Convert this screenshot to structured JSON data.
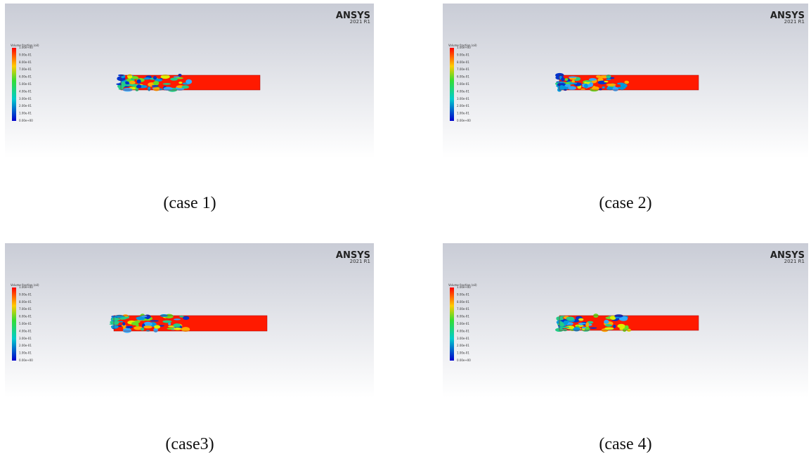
{
  "panels": [
    {
      "caption": "(case 1)",
      "logo": "ANSYS",
      "version": "2021 R1",
      "legend_title": "Volume fraction (oil)",
      "legend_labels": [
        "1.00e+00",
        "9.00e-01",
        "8.00e-01",
        "7.00e-01",
        "6.00e-01",
        "5.00e-01",
        "4.00e-01",
        "3.00e-01",
        "2.00e-01",
        "1.00e-01",
        "0.00e+00"
      ]
    },
    {
      "caption": "(case 2)",
      "logo": "ANSYS",
      "version": "2021 R1",
      "legend_title": "Volume fraction (oil)",
      "legend_labels": [
        "1.00e+00",
        "9.00e-01",
        "8.00e-01",
        "7.00e-01",
        "6.00e-01",
        "5.00e-01",
        "4.00e-01",
        "3.00e-01",
        "2.00e-01",
        "1.00e-01",
        "0.00e+00"
      ]
    },
    {
      "caption": "(case3)",
      "logo": "ANSYS",
      "version": "2021 R1",
      "legend_title": "Volume fraction (oil)",
      "legend_labels": [
        "1.00e+00",
        "9.00e-01",
        "8.00e-01",
        "7.00e-01",
        "6.00e-01",
        "5.00e-01",
        "4.00e-01",
        "3.00e-01",
        "2.00e-01",
        "1.00e-01",
        "0.00e+00"
      ]
    },
    {
      "caption": "(case 4)",
      "logo": "ANSYS",
      "version": "2021 R1",
      "legend_title": "Volume fraction (oil)",
      "legend_labels": [
        "1.00e+00",
        "9.00e-01",
        "8.00e-01",
        "7.00e-01",
        "6.00e-01",
        "5.00e-01",
        "4.00e-01",
        "3.00e-01",
        "2.00e-01",
        "1.00e-01",
        "0.00e+00"
      ]
    }
  ]
}
